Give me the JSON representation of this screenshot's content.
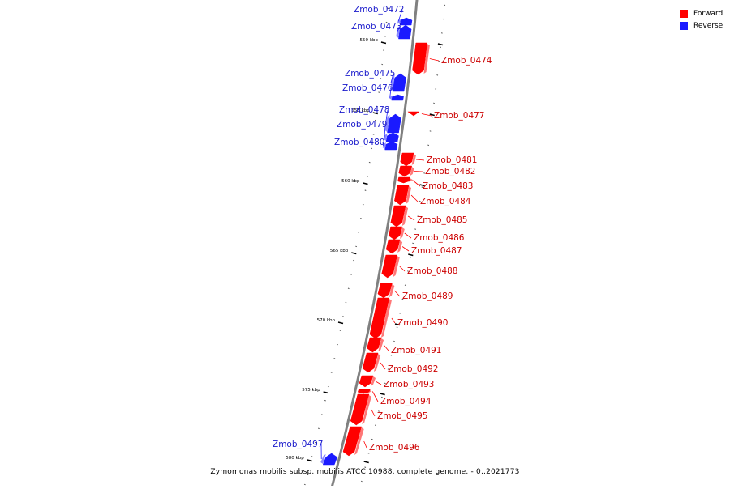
{
  "genome_title": "Zymomonas mobilis subsp. mobilis ATCC 10988, complete genome. - 0..2021773",
  "legend": [
    {
      "label": "Forward",
      "color": "#ff0000"
    },
    {
      "label": "Reverse",
      "color": "#1a1aff"
    }
  ],
  "colors": {
    "forward": "#ff0000",
    "reverse": "#1a1aff",
    "backbone": "#808080"
  },
  "ticks": [
    {
      "label": "550 kbp"
    },
    {
      "label": "555 kbp"
    },
    {
      "label": "560 kbp"
    },
    {
      "label": "565 kbp"
    },
    {
      "label": "570 kbp"
    },
    {
      "label": "575 kbp"
    },
    {
      "label": "580 kbp"
    }
  ],
  "genes": [
    {
      "name": "Zmob_0472",
      "strand": "reverse"
    },
    {
      "name": "Zmob_0473",
      "strand": "reverse"
    },
    {
      "name": "Zmob_0474",
      "strand": "forward"
    },
    {
      "name": "Zmob_0475",
      "strand": "reverse"
    },
    {
      "name": "Zmob_0476",
      "strand": "reverse"
    },
    {
      "name": "Zmob_0477",
      "strand": "forward"
    },
    {
      "name": "Zmob_0478",
      "strand": "reverse"
    },
    {
      "name": "Zmob_0479",
      "strand": "reverse"
    },
    {
      "name": "Zmob_0480",
      "strand": "reverse"
    },
    {
      "name": "Zmob_0481",
      "strand": "forward"
    },
    {
      "name": "Zmob_0482",
      "strand": "forward"
    },
    {
      "name": "Zmob_0483",
      "strand": "forward"
    },
    {
      "name": "Zmob_0484",
      "strand": "forward"
    },
    {
      "name": "Zmob_0485",
      "strand": "forward"
    },
    {
      "name": "Zmob_0486",
      "strand": "forward"
    },
    {
      "name": "Zmob_0487",
      "strand": "forward"
    },
    {
      "name": "Zmob_0488",
      "strand": "forward"
    },
    {
      "name": "Zmob_0489",
      "strand": "forward"
    },
    {
      "name": "Zmob_0490",
      "strand": "forward"
    },
    {
      "name": "Zmob_0491",
      "strand": "forward"
    },
    {
      "name": "Zmob_0492",
      "strand": "forward"
    },
    {
      "name": "Zmob_0493",
      "strand": "forward"
    },
    {
      "name": "Zmob_0494",
      "strand": "forward"
    },
    {
      "name": "Zmob_0495",
      "strand": "forward"
    },
    {
      "name": "Zmob_0496",
      "strand": "forward"
    },
    {
      "name": "Zmob_0497",
      "strand": "reverse"
    }
  ]
}
